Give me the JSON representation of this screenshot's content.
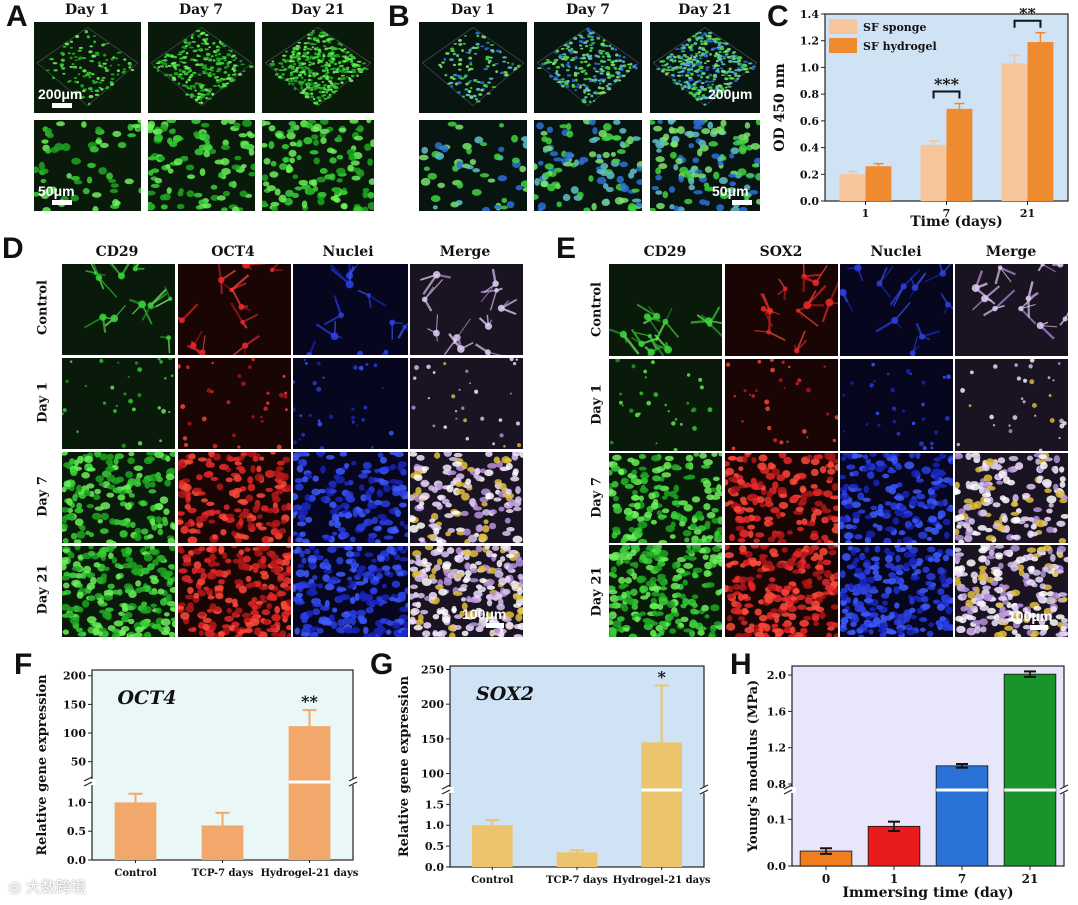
{
  "panels": {
    "A": {
      "label": "A",
      "days": [
        "Day 1",
        "Day 7",
        "Day 21"
      ],
      "scale_top": "200μm",
      "scale_bottom": "50μm"
    },
    "B": {
      "label": "B",
      "days": [
        "Day 1",
        "Day 7",
        "Day 21"
      ],
      "scale_top": "200μm",
      "scale_bottom": "50μm"
    },
    "C": {
      "label": "C"
    },
    "D": {
      "label": "D",
      "columns": [
        "CD29",
        "OCT4",
        "Nuclei",
        "Merge"
      ],
      "rows": [
        "Control",
        "Day 1",
        "Day 7",
        "Day 21"
      ],
      "scale": "100μm"
    },
    "E": {
      "label": "E",
      "columns": [
        "CD29",
        "SOX2",
        "Nuclei",
        "Merge"
      ],
      "rows": [
        "Control",
        "Day 1",
        "Day 7",
        "Day 21"
      ],
      "scale": "100μm"
    },
    "F": {
      "label": "F"
    },
    "G": {
      "label": "G"
    },
    "H": {
      "label": "H"
    }
  },
  "colors": {
    "sponge": "#f6c59c",
    "hydrogel": "#ee8a30",
    "oct4_bar": "#f2a86a",
    "sox2_bar": "#ebc46d",
    "c_bg": "#cfe3f5",
    "f_bg": "#e9f8f6",
    "g_bg": "#cfe3f5",
    "h_bg": "#e8e6fb",
    "h_bars": [
      "#f07d20",
      "#e81c1c",
      "#2b72d6",
      "#18942a"
    ]
  },
  "watermark": "大数跨境",
  "chart_data": [
    {
      "id": "C",
      "type": "bar",
      "categories": [
        "1",
        "7",
        "21"
      ],
      "series": [
        {
          "name": "SF sponge",
          "values": [
            0.2,
            0.42,
            1.03
          ],
          "errors": [
            0.02,
            0.03,
            0.06
          ]
        },
        {
          "name": "SF hydrogel",
          "values": [
            0.26,
            0.69,
            1.19
          ],
          "errors": [
            0.02,
            0.04,
            0.07
          ]
        }
      ],
      "xlabel": "Time (days)",
      "ylabel": "OD 450 nm",
      "ylim": [
        0,
        1.4
      ],
      "yticks": [
        "0.0",
        "0.2",
        "0.4",
        "0.6",
        "0.8",
        "1.0",
        "1.2",
        "1.4"
      ],
      "legend": "top-left",
      "significance": [
        {
          "category": "7",
          "text": "***"
        },
        {
          "category": "21",
          "text": "**"
        }
      ]
    },
    {
      "id": "F",
      "type": "bar",
      "title": "OCT4",
      "categories": [
        "Control",
        "TCP-7 days",
        "Hydrogel-21 days"
      ],
      "values": [
        1.0,
        0.6,
        112
      ],
      "errors": [
        0.15,
        0.22,
        28
      ],
      "ylabel": "Relative gene expression",
      "axis_break": true,
      "yticks_low": [
        "0.0",
        "0.5",
        "1.0"
      ],
      "yticks_high": [
        "50",
        "100",
        "150",
        "200"
      ],
      "significance": [
        {
          "category": "Hydrogel-21 days",
          "text": "**"
        }
      ]
    },
    {
      "id": "G",
      "type": "bar",
      "title": "SOX2",
      "categories": [
        "Control",
        "TCP-7 days",
        "Hydrogel-21 days"
      ],
      "values": [
        1.0,
        0.35,
        145
      ],
      "errors": [
        0.12,
        0.05,
        82
      ],
      "ylabel": "Relative gene expression",
      "axis_break": true,
      "yticks_low": [
        "0.0",
        "0.5",
        "1.0",
        "1.5"
      ],
      "yticks_high": [
        "100",
        "150",
        "200",
        "250"
      ],
      "significance": [
        {
          "category": "Hydrogel-21 days",
          "text": "*"
        }
      ]
    },
    {
      "id": "H",
      "type": "bar",
      "categories": [
        "0",
        "1",
        "7",
        "21"
      ],
      "values": [
        0.032,
        0.085,
        1.0,
        2.01
      ],
      "errors": [
        0.006,
        0.01,
        0.02,
        0.03
      ],
      "xlabel": "Immersing  time (day)",
      "ylabel": "Young's modulus (MPa)",
      "axis_break": true,
      "yticks_low": [
        "0.0",
        "0.1"
      ],
      "yticks_high": [
        "0.8",
        "1.2",
        "1.6",
        "2.0"
      ]
    }
  ]
}
